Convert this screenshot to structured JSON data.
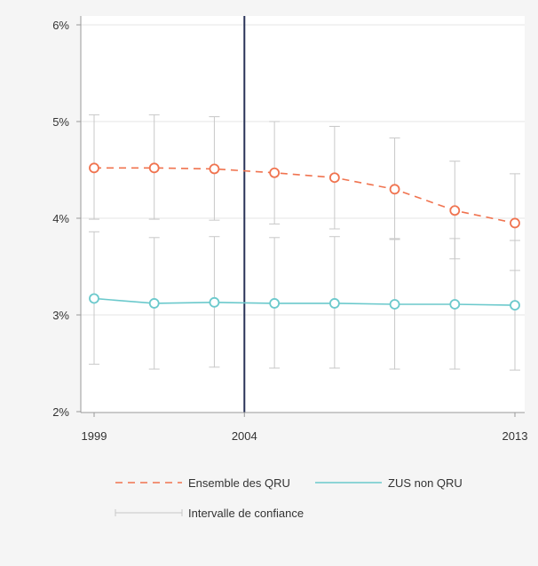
{
  "chart_data": {
    "type": "line",
    "x": [
      1999,
      2001,
      2003,
      2005,
      2007,
      2009,
      2011,
      2013
    ],
    "x_ticks": [
      1999,
      2004,
      2013
    ],
    "x_tick_labels": [
      "1999",
      "2004",
      "2013"
    ],
    "xlim": [
      1999,
      2013
    ],
    "ylim": [
      2,
      6
    ],
    "y_ticks": [
      2,
      3,
      4,
      5,
      6
    ],
    "y_tick_labels": [
      "2%",
      "3%",
      "4%",
      "5%",
      "6%"
    ],
    "reference_line_x": 2004,
    "grid": "horizontal",
    "legend_position": "bottom",
    "series": [
      {
        "name": "Ensemble des QRU",
        "color": "#f0734f",
        "dash": "dashed",
        "values": [
          4.52,
          4.52,
          4.51,
          4.47,
          4.42,
          4.3,
          4.08,
          3.95
        ],
        "ci_low": [
          3.99,
          3.99,
          3.98,
          3.94,
          3.89,
          3.79,
          3.58,
          3.46
        ],
        "ci_high": [
          5.07,
          5.07,
          5.05,
          5.0,
          4.95,
          4.83,
          4.59,
          4.46
        ]
      },
      {
        "name": "ZUS non QRU",
        "color": "#6bc9cc",
        "dash": "solid",
        "values": [
          3.17,
          3.12,
          3.13,
          3.12,
          3.12,
          3.11,
          3.11,
          3.1
        ],
        "ci_low": [
          2.49,
          2.44,
          2.46,
          2.45,
          2.45,
          2.44,
          2.44,
          2.43
        ],
        "ci_high": [
          3.86,
          3.8,
          3.81,
          3.8,
          3.81,
          3.78,
          3.79,
          3.77
        ]
      }
    ],
    "ci_legend_label": "Intervalle de confiance",
    "ci_color": "#c8c8c8"
  }
}
